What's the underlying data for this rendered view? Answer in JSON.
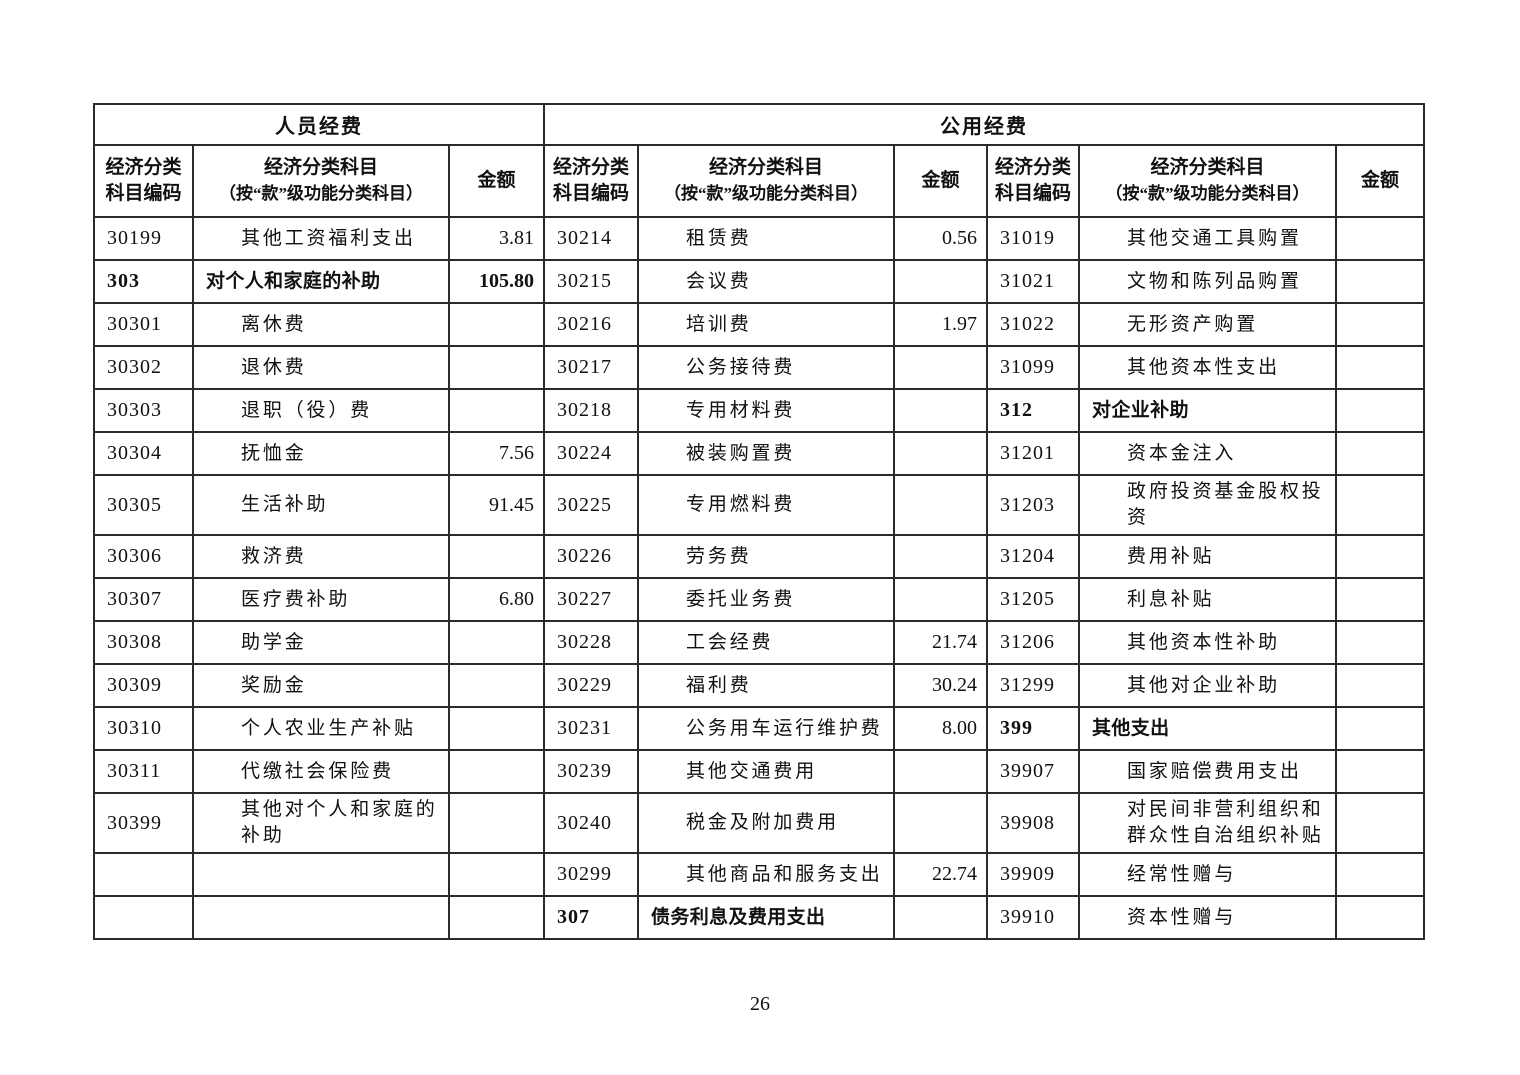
{
  "page": {
    "number": "26"
  },
  "table": {
    "groups": [
      {
        "title": "人员经费"
      },
      {
        "title": "公用经费"
      }
    ],
    "column_headers": {
      "code_line1": "经济分类",
      "code_line2": "科目编码",
      "subject_line1": "经济分类科目",
      "subject_line2": "（按“款”级功能分类科目）",
      "amount": "金额"
    },
    "rows": [
      {
        "cells": [
          {
            "code": "30199",
            "subject": "其他工资福利支出",
            "amount": "3.81",
            "bold": false
          },
          {
            "code": "30214",
            "subject": "租赁费",
            "amount": "0.56",
            "bold": false
          },
          {
            "code": "31019",
            "subject": "其他交通工具购置",
            "amount": "",
            "bold": false
          }
        ]
      },
      {
        "cells": [
          {
            "code": "303",
            "subject": "对个人和家庭的补助",
            "amount": "105.80",
            "bold": true
          },
          {
            "code": "30215",
            "subject": "会议费",
            "amount": "",
            "bold": false
          },
          {
            "code": "31021",
            "subject": "文物和陈列品购置",
            "amount": "",
            "bold": false
          }
        ]
      },
      {
        "cells": [
          {
            "code": "30301",
            "subject": "离休费",
            "amount": "",
            "bold": false
          },
          {
            "code": "30216",
            "subject": "培训费",
            "amount": "1.97",
            "bold": false
          },
          {
            "code": "31022",
            "subject": "无形资产购置",
            "amount": "",
            "bold": false
          }
        ]
      },
      {
        "cells": [
          {
            "code": "30302",
            "subject": "退休费",
            "amount": "",
            "bold": false
          },
          {
            "code": "30217",
            "subject": "公务接待费",
            "amount": "",
            "bold": false
          },
          {
            "code": "31099",
            "subject": "其他资本性支出",
            "amount": "",
            "bold": false
          }
        ]
      },
      {
        "cells": [
          {
            "code": "30303",
            "subject": "退职（役）费",
            "amount": "",
            "bold": false
          },
          {
            "code": "30218",
            "subject": "专用材料费",
            "amount": "",
            "bold": false
          },
          {
            "code": "312",
            "subject": "对企业补助",
            "amount": "",
            "bold": true
          }
        ]
      },
      {
        "cells": [
          {
            "code": "30304",
            "subject": "抚恤金",
            "amount": "7.56",
            "bold": false
          },
          {
            "code": "30224",
            "subject": "被装购置费",
            "amount": "",
            "bold": false
          },
          {
            "code": "31201",
            "subject": "资本金注入",
            "amount": "",
            "bold": false
          }
        ]
      },
      {
        "cells": [
          {
            "code": "30305",
            "subject": "生活补助",
            "amount": "91.45",
            "bold": false
          },
          {
            "code": "30225",
            "subject": "专用燃料费",
            "amount": "",
            "bold": false
          },
          {
            "code": "31203",
            "subject": "政府投资基金股权投资",
            "amount": "",
            "bold": false
          }
        ]
      },
      {
        "cells": [
          {
            "code": "30306",
            "subject": "救济费",
            "amount": "",
            "bold": false
          },
          {
            "code": "30226",
            "subject": "劳务费",
            "amount": "",
            "bold": false
          },
          {
            "code": "31204",
            "subject": "费用补贴",
            "amount": "",
            "bold": false
          }
        ]
      },
      {
        "cells": [
          {
            "code": "30307",
            "subject": "医疗费补助",
            "amount": "6.80",
            "bold": false
          },
          {
            "code": "30227",
            "subject": "委托业务费",
            "amount": "",
            "bold": false
          },
          {
            "code": "31205",
            "subject": "利息补贴",
            "amount": "",
            "bold": false
          }
        ]
      },
      {
        "cells": [
          {
            "code": "30308",
            "subject": "助学金",
            "amount": "",
            "bold": false
          },
          {
            "code": "30228",
            "subject": "工会经费",
            "amount": "21.74",
            "bold": false
          },
          {
            "code": "31206",
            "subject": "其他资本性补助",
            "amount": "",
            "bold": false
          }
        ]
      },
      {
        "cells": [
          {
            "code": "30309",
            "subject": "奖励金",
            "amount": "",
            "bold": false
          },
          {
            "code": "30229",
            "subject": "福利费",
            "amount": "30.24",
            "bold": false
          },
          {
            "code": "31299",
            "subject": "其他对企业补助",
            "amount": "",
            "bold": false
          }
        ]
      },
      {
        "cells": [
          {
            "code": "30310",
            "subject": "个人农业生产补贴",
            "amount": "",
            "bold": false
          },
          {
            "code": "30231",
            "subject": "公务用车运行维护费",
            "amount": "8.00",
            "bold": false
          },
          {
            "code": "399",
            "subject": "其他支出",
            "amount": "",
            "bold": true
          }
        ]
      },
      {
        "cells": [
          {
            "code": "30311",
            "subject": "代缴社会保险费",
            "amount": "",
            "bold": false
          },
          {
            "code": "30239",
            "subject": "其他交通费用",
            "amount": "",
            "bold": false
          },
          {
            "code": "39907",
            "subject": "国家赔偿费用支出",
            "amount": "",
            "bold": false
          }
        ]
      },
      {
        "cells": [
          {
            "code": "30399",
            "subject": "其他对个人和家庭的补助",
            "amount": "",
            "bold": false
          },
          {
            "code": "30240",
            "subject": "税金及附加费用",
            "amount": "",
            "bold": false
          },
          {
            "code": "39908",
            "subject": "对民间非营利组织和群众性自治组织补贴",
            "amount": "",
            "bold": false
          }
        ]
      },
      {
        "cells": [
          {
            "code": "",
            "subject": "",
            "amount": "",
            "bold": false
          },
          {
            "code": "30299",
            "subject": "其他商品和服务支出",
            "amount": "22.74",
            "bold": false
          },
          {
            "code": "39909",
            "subject": "经常性赠与",
            "amount": "",
            "bold": false
          }
        ]
      },
      {
        "cells": [
          {
            "code": "",
            "subject": "",
            "amount": "",
            "bold": false
          },
          {
            "code": "307",
            "subject": "债务利息及费用支出",
            "amount": "",
            "bold": true
          },
          {
            "code": "39910",
            "subject": "资本性赠与",
            "amount": "",
            "bold": false
          }
        ]
      }
    ]
  }
}
